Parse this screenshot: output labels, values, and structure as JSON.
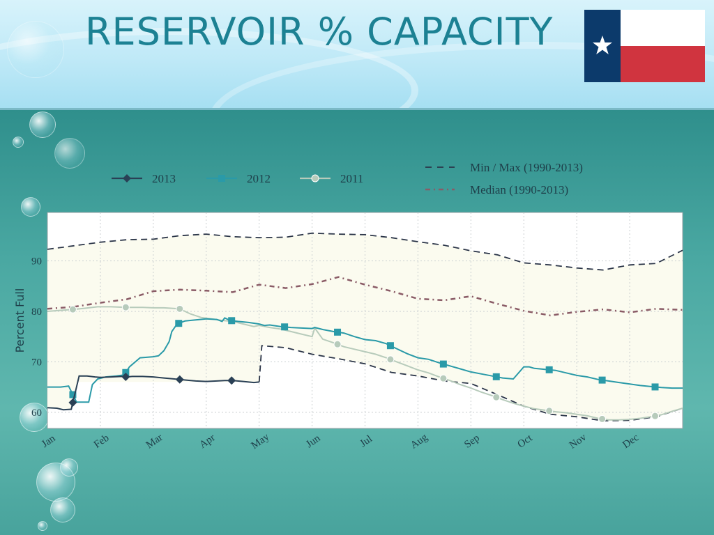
{
  "slide": {
    "title": "RESERVOIR % CAPACITY"
  },
  "colors": {
    "title": "#1c8193",
    "series_2013": "#2a4055",
    "series_2012": "#2a9aa8",
    "series_2011": "#b7cbbb",
    "minmax": "#2b3548",
    "median": "#8a5b66",
    "band_fill": "#fbfbef"
  },
  "chart_data": {
    "type": "line",
    "ylabel": "Percent Full",
    "xlabel": "",
    "ylim": [
      56.8,
      99.6
    ],
    "xlim": [
      0,
      12
    ],
    "yticks": [
      60,
      70,
      80,
      90
    ],
    "months": [
      "Jan",
      "Feb",
      "Mar",
      "Apr",
      "May",
      "Jun",
      "Jul",
      "Aug",
      "Sep",
      "Oct",
      "Nov",
      "Dec"
    ],
    "grid": true,
    "legend_position": "top",
    "series": [
      {
        "name": "2013",
        "style": "line-diamond",
        "x": [
          0,
          0.18,
          0.3,
          0.45,
          0.6,
          0.75,
          0.9,
          1.0,
          1.2,
          1.4,
          1.5,
          1.6,
          1.8,
          2.0,
          2.2,
          2.4,
          2.6,
          2.8,
          3.0,
          3.2,
          3.35,
          3.5,
          3.7,
          3.9,
          4.0
        ],
        "y": [
          60.9,
          60.8,
          60.5,
          60.6,
          67.2,
          67.2,
          67.0,
          66.9,
          67.0,
          67.1,
          67.0,
          67.1,
          67.1,
          67.0,
          66.8,
          66.6,
          66.4,
          66.2,
          66.1,
          66.2,
          66.3,
          66.3,
          66.1,
          65.9,
          66.0
        ],
        "marker_x": [
          0.48,
          1.48,
          2.5,
          3.48
        ]
      },
      {
        "name": "2012",
        "style": "line-square",
        "x": [
          0,
          0.25,
          0.4,
          0.55,
          0.7,
          0.78,
          0.85,
          0.95,
          1.1,
          1.3,
          1.45,
          1.55,
          1.75,
          2.0,
          2.1,
          2.2,
          2.3,
          2.35,
          2.45,
          2.6,
          2.8,
          3.0,
          3.2,
          3.3,
          3.35,
          3.45,
          3.6,
          3.8,
          4.0,
          4.1,
          4.2,
          4.4,
          4.6,
          4.8,
          5.0,
          5.05,
          5.2,
          5.4,
          5.6,
          5.8,
          6.0,
          6.2,
          6.4,
          6.6,
          6.8,
          7.0,
          7.2,
          7.4,
          7.6,
          7.8,
          8.0,
          8.2,
          8.4,
          8.6,
          8.8,
          9.0,
          9.1,
          9.2,
          9.4,
          9.6,
          9.8,
          10.0,
          10.2,
          10.4,
          10.6,
          10.8,
          11.0,
          11.2,
          11.4,
          11.6,
          11.8,
          12.0
        ],
        "y": [
          65.0,
          65.0,
          65.2,
          62.0,
          62.0,
          62.0,
          65.5,
          66.6,
          67.0,
          67.2,
          67.4,
          69.0,
          70.8,
          71.0,
          71.2,
          72.2,
          74.0,
          76.0,
          77.5,
          78.1,
          78.3,
          78.5,
          78.4,
          78.0,
          78.7,
          78.2,
          78.0,
          77.8,
          77.5,
          77.2,
          77.3,
          77.0,
          76.8,
          76.7,
          76.6,
          76.8,
          76.4,
          76.0,
          75.7,
          75.0,
          74.4,
          74.2,
          73.6,
          72.6,
          71.6,
          70.8,
          70.5,
          69.8,
          69.2,
          68.6,
          68.0,
          67.6,
          67.2,
          66.8,
          66.6,
          69.0,
          69.0,
          68.7,
          68.5,
          68.3,
          67.8,
          67.3,
          67.0,
          66.5,
          66.2,
          65.9,
          65.6,
          65.3,
          65.1,
          64.9,
          64.8,
          64.8
        ],
        "marker_x": [
          0.48,
          1.48,
          2.48,
          3.48,
          4.48,
          5.48,
          6.48,
          7.48,
          8.48,
          9.48,
          10.48,
          11.48
        ]
      },
      {
        "name": "2011",
        "style": "line-circle",
        "x": [
          0,
          0.25,
          0.5,
          0.7,
          0.95,
          1.2,
          1.5,
          1.8,
          2.0,
          2.2,
          2.5,
          2.7,
          2.9,
          3.1,
          3.3,
          3.5,
          3.7,
          3.9,
          4.0,
          4.2,
          4.4,
          4.6,
          4.8,
          5.0,
          5.05,
          5.2,
          5.4,
          5.6,
          5.8,
          6.0,
          6.2,
          6.4,
          6.6,
          6.8,
          7.0,
          7.2,
          7.4,
          7.6,
          7.8,
          8.0,
          8.2,
          8.4,
          8.6,
          8.8,
          9.0,
          9.2,
          9.4,
          9.6,
          9.8,
          10.0,
          10.2,
          10.4,
          10.6,
          10.8,
          11.0,
          11.2,
          11.4,
          11.6,
          11.8,
          12.0
        ],
        "y": [
          80.0,
          80.2,
          80.4,
          80.6,
          80.9,
          80.9,
          80.8,
          80.8,
          80.7,
          80.7,
          80.5,
          79.5,
          78.8,
          78.5,
          78.2,
          78.0,
          77.5,
          77.0,
          77.2,
          76.8,
          76.5,
          76.0,
          75.5,
          75.0,
          76.7,
          74.5,
          73.8,
          73.0,
          72.5,
          72.0,
          71.5,
          70.8,
          70.0,
          69.2,
          68.4,
          67.8,
          67.0,
          66.3,
          65.5,
          64.8,
          64.0,
          63.3,
          62.5,
          61.8,
          61.2,
          60.7,
          60.4,
          60.1,
          59.9,
          59.6,
          59.3,
          58.8,
          58.5,
          58.5,
          58.6,
          58.8,
          59.1,
          59.5,
          60.2,
          60.8
        ],
        "marker_x": [
          0.48,
          1.48,
          2.5,
          5.48,
          6.48,
          7.48,
          8.48,
          9.48,
          10.48,
          11.48
        ]
      },
      {
        "name": "Min / Max (1990-2013)",
        "style": "dashed",
        "max_x": [
          0,
          0.5,
          1.0,
          1.5,
          2.0,
          2.5,
          3.0,
          3.5,
          4.0,
          4.5,
          5.0,
          5.5,
          6.0,
          6.5,
          7.0,
          7.5,
          8.0,
          8.5,
          9.0,
          9.5,
          10.0,
          10.5,
          11.0,
          11.5,
          12.0
        ],
        "max_y": [
          92.3,
          93.0,
          93.7,
          94.2,
          94.3,
          95.0,
          95.3,
          94.8,
          94.6,
          94.7,
          95.5,
          95.3,
          95.2,
          94.6,
          93.8,
          93.1,
          92.0,
          91.2,
          89.6,
          89.2,
          88.6,
          88.2,
          89.2,
          89.5,
          92.1
        ],
        "min_x": [
          4.0,
          4.05,
          4.5,
          5.0,
          5.5,
          6.0,
          6.5,
          7.0,
          7.5,
          8.0,
          8.5,
          9.0,
          9.5,
          10.0,
          10.5,
          11.0,
          11.5,
          12.0
        ],
        "min_y": [
          66.0,
          73.2,
          72.8,
          71.5,
          70.6,
          69.6,
          67.9,
          67.2,
          66.2,
          65.7,
          63.5,
          61.2,
          59.6,
          59.1,
          58.3,
          58.4,
          59.1,
          60.8
        ]
      },
      {
        "name": "Median (1990-2013)",
        "style": "dash-dot",
        "x": [
          0,
          0.5,
          1.0,
          1.5,
          2.0,
          2.5,
          3.0,
          3.5,
          4.0,
          4.5,
          5.0,
          5.5,
          6.0,
          6.5,
          7.0,
          7.5,
          8.0,
          8.5,
          9.0,
          9.5,
          10.0,
          10.5,
          11.0,
          11.5,
          12.0
        ],
        "y": [
          80.5,
          80.9,
          81.7,
          82.4,
          84.0,
          84.3,
          84.1,
          83.8,
          85.3,
          84.6,
          85.4,
          86.8,
          85.3,
          84.0,
          82.5,
          82.2,
          83.0,
          81.5,
          80.1,
          79.2,
          79.9,
          80.4,
          79.8,
          80.5,
          80.3
        ]
      }
    ]
  }
}
